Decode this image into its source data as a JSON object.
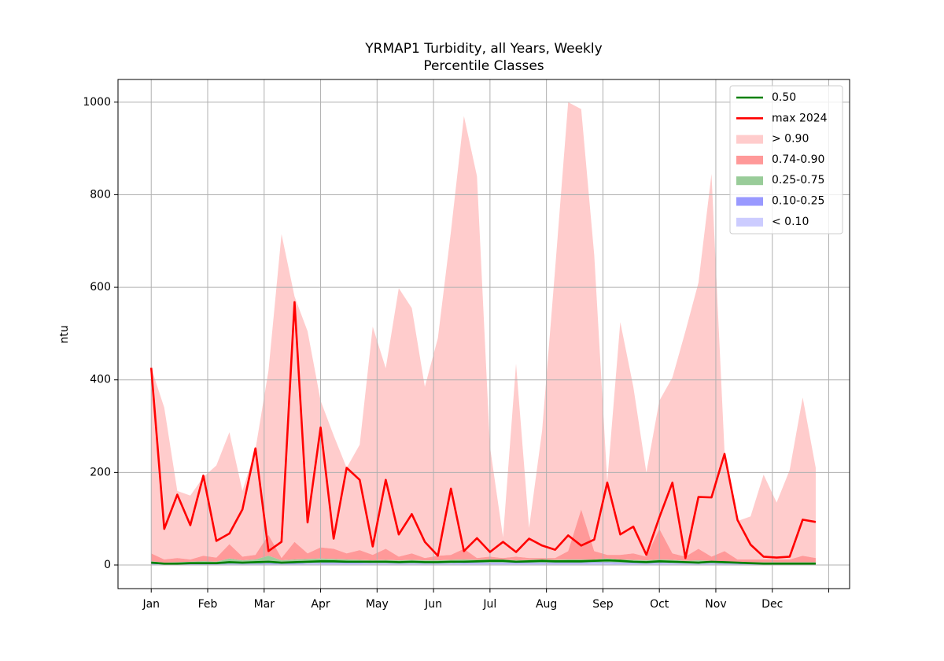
{
  "chart_data": {
    "type": "percentile-area",
    "title": "YRMAP1 Turbidity, all Years, Weekly",
    "subtitle": "Percentile Classes",
    "ylabel": "ntu",
    "x": [
      1,
      2,
      3,
      4,
      5,
      6,
      7,
      8,
      9,
      10,
      11,
      12,
      13,
      14,
      15,
      16,
      17,
      18,
      19,
      20,
      21,
      22,
      23,
      24,
      25,
      26,
      27,
      28,
      29,
      30,
      31,
      32,
      33,
      34,
      35,
      36,
      37,
      38,
      39,
      40,
      41,
      42,
      43,
      44,
      45,
      46,
      47,
      48,
      49,
      50,
      51,
      52
    ],
    "xlim": [
      -1.55,
      54.6
    ],
    "xticks": [
      {
        "value": 1,
        "label": "Jan"
      },
      {
        "value": 5.333,
        "label": "Feb"
      },
      {
        "value": 9.667,
        "label": "Mar"
      },
      {
        "value": 14,
        "label": "Apr"
      },
      {
        "value": 18.333,
        "label": "May"
      },
      {
        "value": 22.667,
        "label": "Jun"
      },
      {
        "value": 27,
        "label": "Jul"
      },
      {
        "value": 31.333,
        "label": "Aug"
      },
      {
        "value": 35.667,
        "label": "Sep"
      },
      {
        "value": 40,
        "label": "Oct"
      },
      {
        "value": 44.333,
        "label": "Nov"
      },
      {
        "value": 48.667,
        "label": "Dec"
      },
      {
        "value": 53,
        "label": null
      }
    ],
    "ylim": [
      -51,
      1049
    ],
    "yticks": [
      0,
      200,
      400,
      600,
      800,
      1000
    ],
    "grid": true,
    "legend": "upper right",
    "lines": [
      {
        "name": "0.50",
        "color": "#008000",
        "values": [
          5,
          3,
          3,
          4,
          4,
          4,
          6,
          5,
          6,
          7,
          5,
          6,
          7,
          8,
          8,
          7,
          7,
          7,
          7,
          6,
          7,
          6,
          6,
          7,
          7,
          8,
          9,
          9,
          7,
          8,
          9,
          8,
          8,
          8,
          9,
          10,
          9,
          7,
          6,
          8,
          7,
          6,
          5,
          7,
          6,
          5,
          4,
          3,
          3,
          3,
          3,
          3
        ]
      },
      {
        "name": "max 2024",
        "color": "#ff0000",
        "values": [
          426,
          78,
          152,
          86,
          193,
          52,
          68,
          120,
          252,
          30,
          50,
          568,
          92,
          297,
          57,
          210,
          184,
          40,
          184,
          66,
          110,
          50,
          20,
          165,
          30,
          58,
          28,
          50,
          28,
          57,
          42,
          33,
          64,
          42,
          55,
          178,
          66,
          83,
          22,
          103,
          178,
          15,
          147,
          146,
          240,
          97,
          44,
          18,
          16,
          18,
          98,
          93
        ]
      }
    ],
    "bands": [
      {
        "name": "> 0.90",
        "color": "#ffcccc",
        "values": [
          426,
          340,
          160,
          150,
          190,
          215,
          287,
          160,
          250,
          420,
          715,
          580,
          505,
          355,
          280,
          210,
          260,
          515,
          425,
          598,
          555,
          385,
          490,
          720,
          970,
          840,
          255,
          60,
          435,
          80,
          290,
          640,
          1000,
          985,
          670,
          180,
          525,
          385,
          200,
          355,
          405,
          505,
          610,
          845,
          245,
          95,
          105,
          195,
          135,
          205,
          362,
          210
        ]
      },
      {
        "name": "0.74-0.90",
        "color": "#ff9999",
        "values": [
          25,
          12,
          15,
          12,
          20,
          16,
          45,
          18,
          22,
          65,
          15,
          50,
          25,
          38,
          35,
          25,
          32,
          22,
          35,
          18,
          25,
          15,
          20,
          22,
          35,
          15,
          18,
          15,
          18,
          15,
          15,
          15,
          30,
          120,
          30,
          22,
          22,
          25,
          18,
          78,
          25,
          18,
          35,
          18,
          30,
          12,
          12,
          12,
          12,
          12,
          20,
          15
        ]
      },
      {
        "name": "0.25-0.75",
        "color": "#99cc99",
        "values": [
          8,
          5,
          6,
          7,
          8,
          7,
          14,
          10,
          12,
          20,
          10,
          12,
          13,
          14,
          13,
          12,
          11,
          10,
          11,
          10,
          11,
          10,
          10,
          11,
          12,
          11,
          12,
          12,
          10,
          11,
          12,
          11,
          12,
          12,
          12,
          14,
          12,
          11,
          10,
          12,
          11,
          9,
          10,
          9,
          8,
          6,
          6,
          6,
          6,
          6,
          6,
          6
        ]
      },
      {
        "name": "0.10-0.25",
        "color": "#9999ff",
        "values": [
          3,
          2,
          2,
          2,
          2,
          2,
          3,
          3,
          3,
          4,
          3,
          4,
          4,
          5,
          5,
          5,
          5,
          4,
          4,
          4,
          4,
          4,
          4,
          4,
          5,
          5,
          5,
          5,
          5,
          5,
          5,
          5,
          5,
          5,
          6,
          6,
          5,
          5,
          4,
          5,
          4,
          4,
          4,
          4,
          3,
          3,
          2,
          2,
          2,
          2,
          2,
          2
        ]
      },
      {
        "name": "< 0.10",
        "color": "#ccccff",
        "values": [
          2,
          1,
          1,
          1,
          1,
          1,
          2,
          2,
          2,
          2,
          2,
          2,
          3,
          3,
          3,
          3,
          3,
          3,
          3,
          3,
          3,
          3,
          3,
          3,
          3,
          3,
          3,
          3,
          3,
          3,
          3,
          3,
          3,
          3,
          4,
          4,
          3,
          3,
          3,
          3,
          3,
          3,
          3,
          3,
          2,
          2,
          1,
          1,
          1,
          1,
          1,
          1
        ]
      }
    ]
  }
}
